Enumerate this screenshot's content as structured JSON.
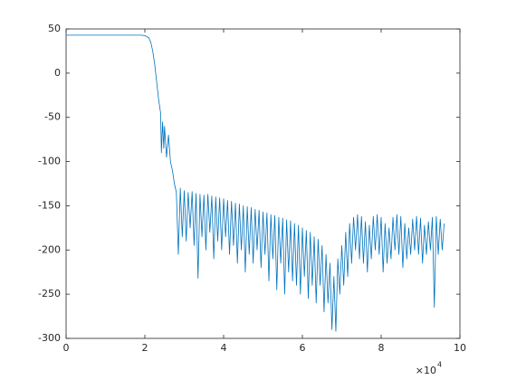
{
  "chart_data": {
    "type": "line",
    "x_exponent_base": "×10",
    "x_exponent": "4",
    "xlim": [
      0,
      10
    ],
    "xticks": [
      0,
      2,
      4,
      6,
      8,
      10
    ],
    "ylim": [
      -300,
      50
    ],
    "yticks": [
      -300,
      -250,
      -200,
      -150,
      -100,
      -50,
      0,
      50
    ],
    "grid": false,
    "series": [
      {
        "color": "#0072bd",
        "x": [
          0,
          1.9,
          2.0,
          2.1,
          2.15,
          2.2,
          2.25,
          2.3,
          2.35,
          2.4,
          2.42,
          2.45,
          2.48,
          2.5,
          2.55,
          2.6,
          2.65,
          2.7,
          2.75,
          2.8,
          2.85,
          2.9,
          2.95,
          3.0,
          3.05,
          3.1,
          3.15,
          3.2,
          3.25,
          3.3,
          3.35,
          3.4,
          3.45,
          3.5,
          3.55,
          3.6,
          3.65,
          3.7,
          3.75,
          3.8,
          3.85,
          3.9,
          3.95,
          4.0,
          4.05,
          4.1,
          4.15,
          4.2,
          4.25,
          4.3,
          4.35,
          4.4,
          4.45,
          4.5,
          4.55,
          4.6,
          4.65,
          4.7,
          4.75,
          4.8,
          4.85,
          4.9,
          4.95,
          5.0,
          5.05,
          5.1,
          5.15,
          5.2,
          5.25,
          5.3,
          5.35,
          5.4,
          5.45,
          5.5,
          5.55,
          5.6,
          5.65,
          5.7,
          5.75,
          5.8,
          5.85,
          5.9,
          5.95,
          6.0,
          6.05,
          6.1,
          6.15,
          6.2,
          6.25,
          6.3,
          6.35,
          6.4,
          6.45,
          6.5,
          6.55,
          6.6,
          6.65,
          6.7,
          6.75,
          6.8,
          6.85,
          6.9,
          6.95,
          7.0,
          7.05,
          7.1,
          7.15,
          7.2,
          7.25,
          7.3,
          7.35,
          7.4,
          7.45,
          7.5,
          7.55,
          7.6,
          7.65,
          7.7,
          7.75,
          7.8,
          7.85,
          7.9,
          7.95,
          8.0,
          8.05,
          8.1,
          8.15,
          8.2,
          8.25,
          8.3,
          8.35,
          8.4,
          8.45,
          8.5,
          8.55,
          8.6,
          8.65,
          8.7,
          8.75,
          8.8,
          8.85,
          8.9,
          8.95,
          9.0,
          9.05,
          9.1,
          9.15,
          9.2,
          9.25,
          9.3,
          9.35,
          9.4,
          9.45,
          9.5,
          9.55,
          9.6
        ],
        "values": [
          43,
          43,
          42.5,
          40,
          35,
          25,
          10,
          -10,
          -30,
          -45,
          -90,
          -55,
          -85,
          -60,
          -95,
          -70,
          -100,
          -110,
          -125,
          -135,
          -205,
          -130,
          -185,
          -133,
          -190,
          -135,
          -175,
          -134,
          -195,
          -136,
          -232,
          -137,
          -185,
          -138,
          -200,
          -137,
          -180,
          -139,
          -210,
          -140,
          -190,
          -141,
          -200,
          -142,
          -185,
          -144,
          -205,
          -145,
          -195,
          -147,
          -215,
          -148,
          -200,
          -150,
          -225,
          -151,
          -205,
          -152,
          -215,
          -154,
          -200,
          -155,
          -220,
          -157,
          -205,
          -158,
          -235,
          -160,
          -210,
          -161,
          -245,
          -163,
          -215,
          -164,
          -250,
          -166,
          -225,
          -167,
          -235,
          -170,
          -240,
          -172,
          -250,
          -175,
          -230,
          -178,
          -255,
          -180,
          -240,
          -185,
          -260,
          -188,
          -240,
          -195,
          -270,
          -205,
          -260,
          -215,
          -290,
          -230,
          -292,
          -210,
          -250,
          -195,
          -240,
          -180,
          -230,
          -170,
          -215,
          -163,
          -200,
          -160,
          -210,
          -162,
          -215,
          -168,
          -225,
          -172,
          -210,
          -162,
          -200,
          -160,
          -205,
          -163,
          -225,
          -170,
          -215,
          -175,
          -210,
          -163,
          -200,
          -160,
          -205,
          -162,
          -220,
          -170,
          -210,
          -175,
          -205,
          -165,
          -200,
          -162,
          -205,
          -164,
          -215,
          -172,
          -205,
          -168,
          -200,
          -163,
          -265,
          -162,
          -205,
          -165,
          -200,
          -170
        ]
      }
    ]
  }
}
